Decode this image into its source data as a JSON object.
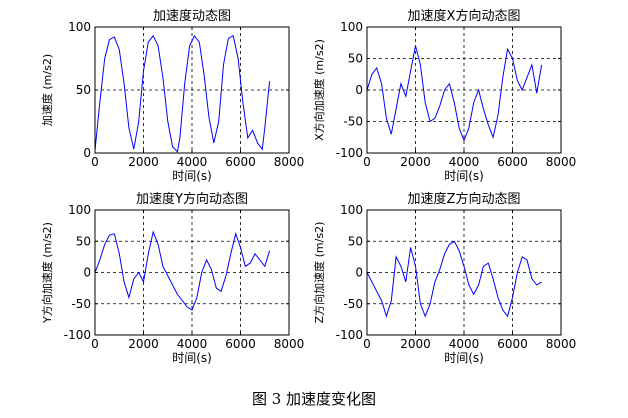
{
  "caption": "图 3  加速度变化图",
  "chart_data": [
    {
      "type": "line",
      "title": "加速度动态图",
      "xlabel": "时间(s)",
      "ylabel": "加速度 (m/s2)",
      "xlim": [
        0,
        8000
      ],
      "ylim": [
        0,
        100
      ],
      "xticks": [
        0,
        2000,
        4000,
        6000,
        8000
      ],
      "yticks": [
        0,
        50,
        100
      ],
      "grid": true,
      "color": "#0000ff",
      "series": [
        {
          "x": [
            0,
            200,
            400,
            600,
            800,
            1000,
            1200,
            1400,
            1600,
            1800,
            2000,
            2200,
            2400,
            2600,
            2800,
            3000,
            3200,
            3400,
            3500,
            3700,
            3900,
            4100,
            4300,
            4500,
            4700,
            4900,
            5100,
            5300,
            5500,
            5700,
            5900,
            6100,
            6300,
            6500,
            6700,
            6900,
            7000,
            7200
          ],
          "y": [
            2,
            40,
            75,
            90,
            92,
            82,
            55,
            20,
            3,
            25,
            65,
            88,
            93,
            85,
            60,
            25,
            5,
            1,
            12,
            55,
            85,
            93,
            88,
            62,
            28,
            8,
            25,
            70,
            91,
            93,
            75,
            40,
            12,
            18,
            8,
            3,
            20,
            57
          ]
        }
      ]
    },
    {
      "type": "line",
      "title": "加速度X方向动态图",
      "xlabel": "时间(s)",
      "ylabel": "X方向加速度 (m/s2)",
      "xlim": [
        0,
        8000
      ],
      "ylim": [
        -100,
        100
      ],
      "xticks": [
        0,
        2000,
        4000,
        6000,
        8000
      ],
      "yticks": [
        -100,
        -50,
        0,
        50,
        100
      ],
      "grid": true,
      "color": "#0000ff",
      "series": [
        {
          "x": [
            0,
            200,
            400,
            600,
            800,
            1000,
            1200,
            1400,
            1600,
            1800,
            2000,
            2200,
            2400,
            2600,
            2800,
            3000,
            3200,
            3400,
            3600,
            3800,
            4000,
            4200,
            4400,
            4600,
            4800,
            5000,
            5200,
            5400,
            5600,
            5800,
            6000,
            6200,
            6400,
            6600,
            6800,
            7000,
            7200
          ],
          "y": [
            0,
            25,
            35,
            10,
            -45,
            -70,
            -30,
            10,
            -10,
            30,
            70,
            40,
            -20,
            -50,
            -45,
            -25,
            0,
            10,
            -20,
            -60,
            -80,
            -60,
            -20,
            0,
            -30,
            -55,
            -75,
            -40,
            20,
            65,
            50,
            15,
            0,
            20,
            40,
            -5,
            40
          ]
        }
      ]
    },
    {
      "type": "line",
      "title": "加速度Y方向动态图",
      "xlabel": "时间(s)",
      "ylabel": "Y方向加速度 (m/s2)",
      "xlim": [
        0,
        8000
      ],
      "ylim": [
        -100,
        100
      ],
      "xticks": [
        0,
        2000,
        4000,
        6000,
        8000
      ],
      "yticks": [
        -100,
        -50,
        0,
        50,
        100
      ],
      "grid": true,
      "color": "#0000ff",
      "series": [
        {
          "x": [
            0,
            200,
            400,
            600,
            800,
            1000,
            1200,
            1400,
            1600,
            1800,
            2000,
            2200,
            2400,
            2600,
            2800,
            3000,
            3200,
            3400,
            3600,
            3800,
            4000,
            4200,
            4400,
            4600,
            4800,
            5000,
            5200,
            5400,
            5600,
            5800,
            6000,
            6200,
            6400,
            6600,
            6800,
            7000,
            7200
          ],
          "y": [
            0,
            20,
            45,
            60,
            62,
            30,
            -15,
            -40,
            -10,
            0,
            -15,
            30,
            65,
            45,
            10,
            -5,
            -20,
            -35,
            -45,
            -55,
            -60,
            -40,
            0,
            20,
            5,
            -25,
            -30,
            -5,
            30,
            62,
            40,
            10,
            15,
            30,
            20,
            10,
            35
          ]
        }
      ]
    },
    {
      "type": "line",
      "title": "加速度Z方向动态图",
      "xlabel": "时间(s)",
      "ylabel": "Z方向加速度 (m/s2)",
      "xlim": [
        0,
        8000
      ],
      "ylim": [
        -100,
        100
      ],
      "xticks": [
        0,
        2000,
        4000,
        6000,
        8000
      ],
      "yticks": [
        -100,
        -50,
        0,
        50,
        100
      ],
      "grid": true,
      "color": "#0000ff",
      "series": [
        {
          "x": [
            0,
            200,
            400,
            600,
            800,
            1000,
            1200,
            1400,
            1600,
            1800,
            2000,
            2200,
            2400,
            2600,
            2800,
            3000,
            3200,
            3400,
            3600,
            3800,
            4000,
            4200,
            4400,
            4600,
            4800,
            5000,
            5200,
            5400,
            5600,
            5800,
            6000,
            6200,
            6400,
            6600,
            6800,
            7000,
            7200
          ],
          "y": [
            0,
            -15,
            -30,
            -45,
            -70,
            -45,
            25,
            10,
            -15,
            40,
            10,
            -50,
            -70,
            -50,
            -15,
            5,
            30,
            45,
            50,
            35,
            10,
            -20,
            -35,
            -20,
            10,
            15,
            -10,
            -40,
            -60,
            -70,
            -40,
            0,
            25,
            20,
            -10,
            -20,
            -15
          ]
        }
      ]
    }
  ]
}
